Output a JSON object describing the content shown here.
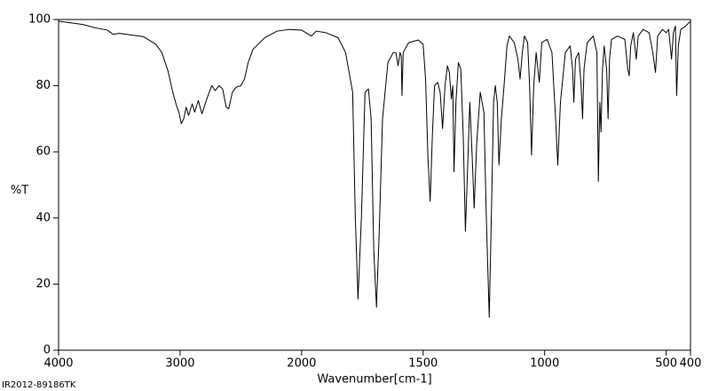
{
  "chart_data": {
    "type": "line",
    "ylabel": "%T",
    "xlabel": "Wavenumber[cm-1]",
    "footer": "IR2012-89186TK",
    "xlim": [
      4000,
      400
    ],
    "xticks": [
      4000,
      3000,
      2000,
      1500,
      1000,
      500,
      400
    ],
    "xscale_break": 2000,
    "xscale_break_factor": 2,
    "ylim": [
      0,
      100
    ],
    "yticks": [
      0,
      20,
      40,
      60,
      80,
      100
    ],
    "grid": false,
    "color": "#000000",
    "x": [
      4000,
      3900,
      3800,
      3700,
      3600,
      3550,
      3500,
      3400,
      3300,
      3200,
      3150,
      3100,
      3060,
      3030,
      3010,
      2990,
      2970,
      2950,
      2930,
      2900,
      2880,
      2850,
      2820,
      2780,
      2740,
      2710,
      2680,
      2650,
      2620,
      2600,
      2570,
      2540,
      2500,
      2470,
      2440,
      2400,
      2300,
      2200,
      2100,
      2000,
      1960,
      1940,
      1900,
      1850,
      1819,
      1790,
      1779,
      1768,
      1754,
      1739,
      1725,
      1714,
      1703,
      1692,
      1681,
      1667,
      1645,
      1623,
      1612,
      1603,
      1595,
      1590,
      1587,
      1582,
      1560,
      1520,
      1500,
      1490,
      1480,
      1471,
      1462,
      1453,
      1440,
      1430,
      1420,
      1410,
      1400,
      1392,
      1384,
      1378,
      1373,
      1365,
      1355,
      1345,
      1335,
      1326,
      1317,
      1308,
      1299,
      1290,
      1280,
      1265,
      1250,
      1240,
      1228,
      1218,
      1210,
      1203,
      1195,
      1188,
      1178,
      1167,
      1155,
      1145,
      1125,
      1110,
      1101,
      1092,
      1083,
      1070,
      1062,
      1054,
      1045,
      1035,
      1022,
      1012,
      990,
      970,
      955,
      946,
      935,
      915,
      895,
      885,
      880,
      873,
      860,
      850,
      844,
      838,
      825,
      800,
      785,
      779,
      773,
      768,
      762,
      755,
      745,
      739,
      733,
      725,
      700,
      670,
      658,
      652,
      646,
      635,
      623,
      615,
      595,
      570,
      555,
      544,
      535,
      515,
      500,
      490,
      478,
      470,
      462,
      457,
      450,
      440,
      420,
      400
    ],
    "values": [
      99.5,
      99,
      98.5,
      97.5,
      96.8,
      95.5,
      95.8,
      95.3,
      94.8,
      92.5,
      90,
      84.5,
      78,
      74,
      72,
      68.5,
      70,
      73.5,
      71,
      74.5,
      72,
      75.5,
      71.5,
      76,
      80,
      78.5,
      80,
      79,
      73.5,
      73,
      78,
      79.5,
      80,
      82,
      87,
      91,
      94.6,
      96.5,
      97,
      96.8,
      95,
      96.5,
      96,
      94.5,
      90,
      78,
      40,
      15.5,
      40,
      78,
      79,
      70,
      30,
      13,
      35,
      70,
      87,
      90,
      90,
      86,
      90,
      89,
      77,
      90,
      93,
      93.8,
      92.5,
      82,
      58,
      45,
      65,
      80,
      81,
      78,
      67,
      80,
      86,
      84,
      76,
      80,
      54,
      75,
      87,
      85,
      65,
      36,
      55,
      75,
      60,
      43,
      62,
      78,
      72,
      40,
      10,
      45,
      75,
      80,
      75,
      56,
      70,
      80,
      92,
      95,
      93,
      88,
      82,
      90,
      95,
      93,
      80,
      59,
      80,
      90,
      81,
      93,
      94,
      90,
      70,
      56,
      75,
      90,
      92,
      85,
      75,
      88,
      90,
      80,
      70,
      85,
      93,
      95,
      90,
      51,
      75,
      66,
      85,
      92,
      85,
      70,
      88,
      94,
      95,
      94,
      85,
      83,
      92,
      96,
      88,
      95,
      97,
      96,
      90,
      84,
      95,
      97,
      96,
      97,
      88,
      96,
      98,
      77,
      92,
      97,
      98,
      99.5
    ]
  }
}
